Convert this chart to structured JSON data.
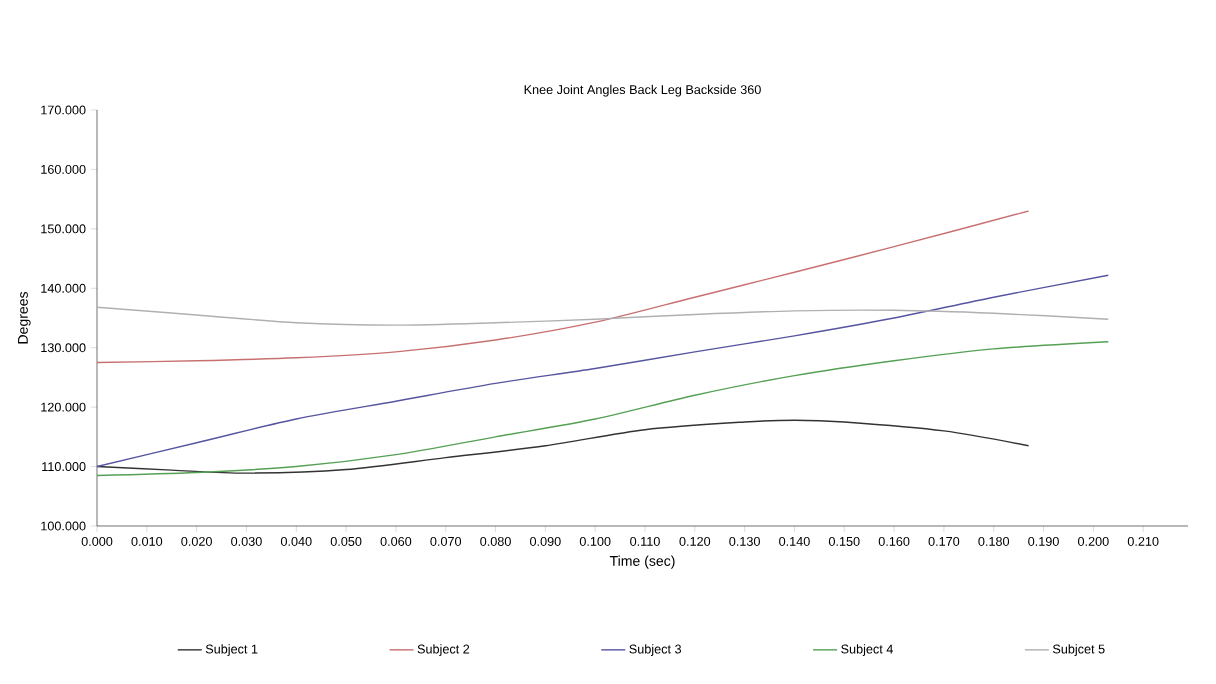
{
  "chart_data": {
    "type": "line",
    "title": "Knee Joint Angles Back Leg Backside 360",
    "xlabel": "Time (sec)",
    "ylabel": "Degrees",
    "xlim": [
      0,
      0.219
    ],
    "ylim": [
      100,
      170
    ],
    "xticks": [
      {
        "value": 0,
        "label": "0.000"
      },
      {
        "value": 0.01,
        "label": "0.010"
      },
      {
        "value": 0.02,
        "label": "0.020"
      },
      {
        "value": 0.03,
        "label": "0.030"
      },
      {
        "value": 0.04,
        "label": "0.040"
      },
      {
        "value": 0.05,
        "label": "0.050"
      },
      {
        "value": 0.06,
        "label": "0.060"
      },
      {
        "value": 0.07,
        "label": "0.070"
      },
      {
        "value": 0.08,
        "label": "0.080"
      },
      {
        "value": 0.09,
        "label": "0.090"
      },
      {
        "value": 0.1,
        "label": "0.100"
      },
      {
        "value": 0.11,
        "label": "0.110"
      },
      {
        "value": 0.12,
        "label": "0.120"
      },
      {
        "value": 0.13,
        "label": "0.130"
      },
      {
        "value": 0.14,
        "label": "0.140"
      },
      {
        "value": 0.15,
        "label": "0.150"
      },
      {
        "value": 0.16,
        "label": "0.160"
      },
      {
        "value": 0.17,
        "label": "0.170"
      },
      {
        "value": 0.18,
        "label": "0.180"
      },
      {
        "value": 0.19,
        "label": "0.190"
      },
      {
        "value": 0.2,
        "label": "0.200"
      },
      {
        "value": 0.21,
        "label": "0.210"
      }
    ],
    "yticks": [
      {
        "value": 100,
        "label": "100.000"
      },
      {
        "value": 110,
        "label": "110.000"
      },
      {
        "value": 120,
        "label": "120.000"
      },
      {
        "value": 130,
        "label": "130.000"
      },
      {
        "value": 140,
        "label": "140.000"
      },
      {
        "value": 150,
        "label": "150.000"
      },
      {
        "value": 160,
        "label": "160.000"
      },
      {
        "value": 170,
        "label": "170.000"
      }
    ],
    "grid": false,
    "legend": "bottom",
    "marker": "none",
    "line_style": "solid",
    "series": [
      {
        "name": "Subject 1",
        "color": "#333333",
        "x": [
          0,
          0.015,
          0.03,
          0.05,
          0.07,
          0.09,
          0.11,
          0.13,
          0.14,
          0.15,
          0.17,
          0.187
        ],
        "values": [
          110,
          109.4,
          108.9,
          109.5,
          111.5,
          113.5,
          116.2,
          117.5,
          117.8,
          117.5,
          116,
          113.5
        ]
      },
      {
        "name": "Subject 2",
        "color": "#c87070",
        "x": [
          0,
          0.02,
          0.04,
          0.06,
          0.08,
          0.1,
          0.12,
          0.14,
          0.16,
          0.187
        ],
        "values": [
          127.5,
          127.8,
          128.3,
          129.3,
          131.3,
          134.3,
          138.5,
          142.7,
          147,
          153
        ]
      },
      {
        "name": "Subject 3",
        "color": "#5555a0",
        "x": [
          0,
          0.02,
          0.04,
          0.06,
          0.08,
          0.1,
          0.12,
          0.14,
          0.16,
          0.18,
          0.203
        ],
        "values": [
          110,
          114,
          118,
          121,
          124,
          126.5,
          129.3,
          132,
          135,
          138.5,
          142.2
        ]
      },
      {
        "name": "Subject 4",
        "color": "#55a055",
        "x": [
          0,
          0.02,
          0.04,
          0.06,
          0.08,
          0.1,
          0.12,
          0.14,
          0.16,
          0.18,
          0.203
        ],
        "values": [
          108.5,
          109,
          110,
          112,
          115,
          118,
          122,
          125.3,
          127.8,
          129.8,
          131
        ]
      },
      {
        "name": "Subjcet 5",
        "color": "#b0b0b0",
        "x": [
          0,
          0.02,
          0.04,
          0.06,
          0.08,
          0.1,
          0.12,
          0.14,
          0.16,
          0.18,
          0.203
        ],
        "values": [
          136.8,
          135.5,
          134.2,
          133.8,
          134.2,
          134.8,
          135.6,
          136.2,
          136.3,
          135.8,
          134.8
        ]
      }
    ]
  }
}
